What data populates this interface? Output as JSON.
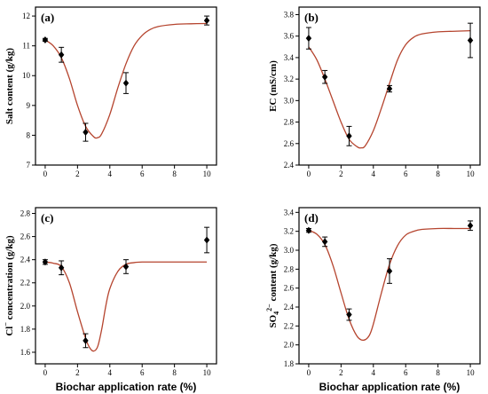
{
  "chart_data": [
    {
      "type": "scatter",
      "panel_label": "(a)",
      "ylabel_main": "Salt content (g/kg)",
      "ylabel_sup": "",
      "ylabel_tail": "",
      "xlabel": "",
      "xlim": [
        -0.6,
        10.6
      ],
      "ylim": [
        7,
        12.3
      ],
      "x_ticks": [
        0,
        2,
        4,
        6,
        8,
        10
      ],
      "y_ticks": [
        7,
        8,
        9,
        10,
        11,
        12
      ],
      "y_tick_labels": [
        "7",
        "8",
        "9",
        "10",
        "11",
        "12"
      ],
      "x": [
        0,
        1,
        2.5,
        5,
        10
      ],
      "y": [
        11.2,
        10.7,
        8.1,
        9.75,
        11.85
      ],
      "err": [
        0.05,
        0.25,
        0.3,
        0.35,
        0.15
      ],
      "fit": {
        "x": [
          0,
          0.5,
          1,
          1.5,
          2,
          2.5,
          3,
          3.25,
          3.5,
          4,
          4.5,
          5,
          5.5,
          6,
          6.5,
          7,
          8,
          9,
          10
        ],
        "y": [
          11.2,
          11.0,
          10.6,
          9.9,
          9.0,
          8.3,
          7.95,
          7.92,
          8.05,
          8.7,
          9.6,
          10.4,
          11.0,
          11.35,
          11.55,
          11.65,
          11.72,
          11.74,
          11.75
        ]
      }
    },
    {
      "type": "scatter",
      "panel_label": "(b)",
      "ylabel_main": "EC (mS/cm)",
      "ylabel_sup": "",
      "ylabel_tail": "",
      "xlabel": "",
      "xlim": [
        -0.6,
        10.6
      ],
      "ylim": [
        2.4,
        3.87
      ],
      "x_ticks": [
        0,
        2,
        4,
        6,
        8,
        10
      ],
      "y_ticks": [
        2.4,
        2.6,
        2.8,
        3.0,
        3.2,
        3.4,
        3.6,
        3.8
      ],
      "y_tick_labels": [
        "2.4",
        "2.6",
        "2.8",
        "3.0",
        "3.2",
        "3.4",
        "3.6",
        "3.8"
      ],
      "x": [
        0,
        1,
        2.5,
        5,
        10
      ],
      "y": [
        3.58,
        3.22,
        2.67,
        3.11,
        3.56
      ],
      "err": [
        0.1,
        0.06,
        0.09,
        0.03,
        0.16
      ],
      "fit": {
        "x": [
          0,
          0.5,
          1,
          1.5,
          2,
          2.5,
          3,
          3.25,
          3.5,
          4,
          4.5,
          5,
          5.5,
          6,
          6.5,
          7,
          8,
          9,
          10
        ],
        "y": [
          3.5,
          3.38,
          3.2,
          3.0,
          2.8,
          2.64,
          2.57,
          2.56,
          2.58,
          2.72,
          2.93,
          3.16,
          3.38,
          3.52,
          3.59,
          3.62,
          3.64,
          3.645,
          3.65
        ]
      }
    },
    {
      "type": "scatter",
      "panel_label": "(c)",
      "ylabel_main": "Cl",
      "ylabel_sup": "−",
      "ylabel_tail": " concentration (g/kg)",
      "xlabel": "Biochar application rate (%)",
      "xlim": [
        -0.6,
        10.6
      ],
      "ylim": [
        1.5,
        2.85
      ],
      "x_ticks": [
        0,
        2,
        4,
        6,
        8,
        10
      ],
      "y_ticks": [
        1.6,
        1.8,
        2.0,
        2.2,
        2.4,
        2.6,
        2.8
      ],
      "y_tick_labels": [
        "1.6",
        "1.8",
        "2.0",
        "2.2",
        "2.4",
        "2.6",
        "2.8"
      ],
      "x": [
        0,
        1,
        2.5,
        5,
        10
      ],
      "y": [
        2.38,
        2.33,
        1.7,
        2.34,
        2.57
      ],
      "err": [
        0.02,
        0.06,
        0.06,
        0.06,
        0.11
      ],
      "fit": {
        "x": [
          0,
          0.5,
          1,
          1.5,
          2,
          2.5,
          2.75,
          3,
          3.25,
          3.5,
          3.75,
          4,
          4.5,
          5,
          5.5,
          6,
          7,
          8,
          10
        ],
        "y": [
          2.38,
          2.37,
          2.34,
          2.2,
          1.95,
          1.72,
          1.64,
          1.61,
          1.65,
          1.8,
          2.0,
          2.15,
          2.3,
          2.36,
          2.375,
          2.38,
          2.38,
          2.38,
          2.38
        ]
      }
    },
    {
      "type": "scatter",
      "panel_label": "(d)",
      "ylabel_main": "SO",
      "ylabel_sub": "4",
      "ylabel_sup": "2−",
      "ylabel_tail": " content (g/kg)",
      "xlabel": "Biochar application rate (%)",
      "xlim": [
        -0.6,
        10.6
      ],
      "ylim": [
        1.8,
        3.45
      ],
      "x_ticks": [
        0,
        2,
        4,
        6,
        8,
        10
      ],
      "y_ticks": [
        1.8,
        2.0,
        2.2,
        2.4,
        2.6,
        2.8,
        3.0,
        3.2,
        3.4
      ],
      "y_tick_labels": [
        "1.8",
        "2.0",
        "2.2",
        "2.4",
        "2.6",
        "2.8",
        "3.0",
        "3.2",
        "3.4"
      ],
      "x": [
        0,
        1,
        2.5,
        5,
        10
      ],
      "y": [
        3.21,
        3.09,
        2.32,
        2.78,
        3.26
      ],
      "err": [
        0.02,
        0.05,
        0.06,
        0.13,
        0.05
      ],
      "fit": {
        "x": [
          0,
          0.5,
          1,
          1.5,
          2,
          2.5,
          3,
          3.4,
          3.75,
          4,
          4.5,
          5,
          5.5,
          6,
          6.5,
          7,
          8,
          9,
          10
        ],
        "y": [
          3.21,
          3.17,
          3.06,
          2.84,
          2.55,
          2.27,
          2.09,
          2.05,
          2.1,
          2.22,
          2.55,
          2.85,
          3.05,
          3.16,
          3.2,
          3.22,
          3.23,
          3.23,
          3.23
        ]
      }
    }
  ]
}
